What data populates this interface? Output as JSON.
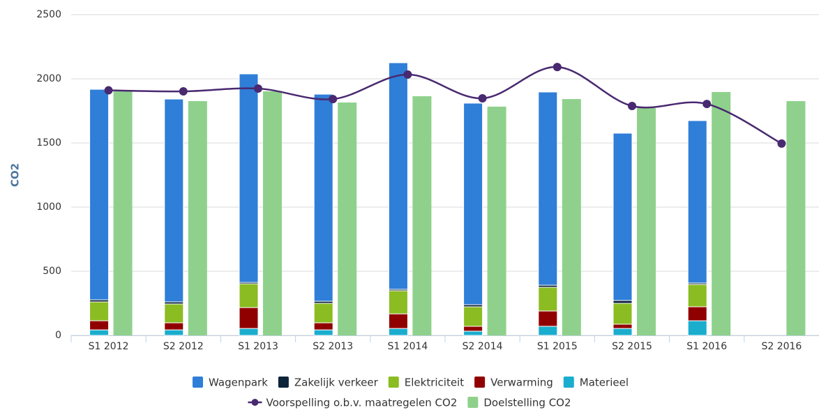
{
  "chart_data": {
    "type": "combo",
    "y_label": "CO2",
    "categories": [
      "S1 2012",
      "S2 2012",
      "S1 2013",
      "S2 2013",
      "S1 2014",
      "S2 2014",
      "S1 2015",
      "S2 2015",
      "S1 2016",
      "S2 2016"
    ],
    "ylim": [
      0,
      2500
    ],
    "yticks": [
      0,
      500,
      1000,
      1500,
      2000,
      2500
    ],
    "grid": true,
    "series": [
      {
        "name": "Wagenpark",
        "type": "column",
        "stack": true,
        "color": "#2f7ed8",
        "values": [
          1641,
          1581,
          1625,
          1614,
          1766,
          1571,
          1506,
          1304,
          1266,
          null
        ]
      },
      {
        "name": "Zakelijk verkeer",
        "type": "column",
        "stack": true,
        "color": "#0d233a",
        "values": [
          16,
          16,
          11,
          16,
          11,
          16,
          16,
          22,
          11,
          null
        ]
      },
      {
        "name": "Elektriciteit",
        "type": "column",
        "stack": true,
        "color": "#8bbc21",
        "values": [
          147,
          147,
          185,
          152,
          180,
          152,
          185,
          163,
          174,
          null
        ]
      },
      {
        "name": "Verwarming",
        "type": "column",
        "stack": true,
        "color": "#910000",
        "values": [
          71,
          55,
          163,
          55,
          114,
          38,
          119,
          33,
          109,
          null
        ]
      },
      {
        "name": "Materieel",
        "type": "column",
        "stack": true,
        "color": "#1aadce",
        "values": [
          43,
          43,
          54,
          43,
          54,
          33,
          71,
          54,
          114,
          null
        ]
      },
      {
        "name": "Voorspelling o.b.v. maatregelen CO2",
        "type": "spline",
        "color": "#492970",
        "values": [
          1910,
          1902,
          1924,
          1842,
          2033,
          1848,
          2092,
          1788,
          1804,
          1495
        ]
      },
      {
        "name": "Doelstelling CO2",
        "type": "column",
        "stack": false,
        "color": "#8fd18c",
        "values": [
          1902,
          1826,
          1902,
          1815,
          1864,
          1783,
          1842,
          1772,
          1897,
          1826
        ]
      }
    ]
  }
}
